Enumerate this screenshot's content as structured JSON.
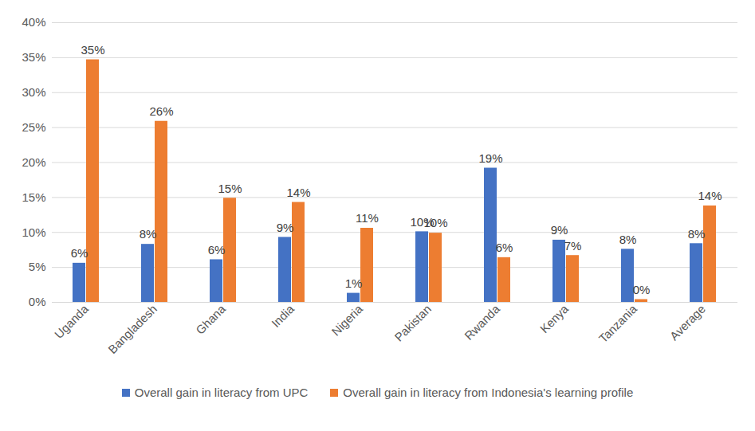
{
  "chart_data": {
    "type": "bar",
    "categories": [
      "Uganda",
      "Bangladesh",
      "Ghana",
      "India",
      "Nigeria",
      "Pakistan",
      "Rwanda",
      "Kenya",
      "Tanzania",
      "Average"
    ],
    "series": [
      {
        "name": "Overall gain in literacy from UPC",
        "color": "#4472c4",
        "values": [
          5.6,
          8.3,
          6.1,
          9.3,
          1.3,
          10.1,
          19.2,
          8.9,
          7.6,
          8.4
        ],
        "value_labels": [
          "6%",
          "8%",
          "6%",
          "9%",
          "1%",
          "10%",
          "19%",
          "9%",
          "8%",
          "8%"
        ]
      },
      {
        "name": "Overall gain in literacy from Indonesia's learning profile",
        "color": "#ed7d31",
        "values": [
          34.7,
          25.9,
          14.9,
          14.3,
          10.6,
          9.9,
          6.4,
          6.7,
          0.4,
          13.8
        ],
        "value_labels": [
          "35%",
          "26%",
          "15%",
          "14%",
          "11%",
          "10%",
          "6%",
          "7%",
          "0%",
          "14%"
        ]
      }
    ],
    "ylim": [
      0,
      40
    ],
    "yticks": [
      {
        "value": 0,
        "label": "0%"
      },
      {
        "value": 5,
        "label": "5%"
      },
      {
        "value": 10,
        "label": "10%"
      },
      {
        "value": 15,
        "label": "15%"
      },
      {
        "value": 20,
        "label": "20%"
      },
      {
        "value": 25,
        "label": "25%"
      },
      {
        "value": 30,
        "label": "30%"
      },
      {
        "value": 35,
        "label": "35%"
      },
      {
        "value": 40,
        "label": "40%"
      }
    ],
    "grid": true,
    "legend": "bottom",
    "data_labels": true
  }
}
